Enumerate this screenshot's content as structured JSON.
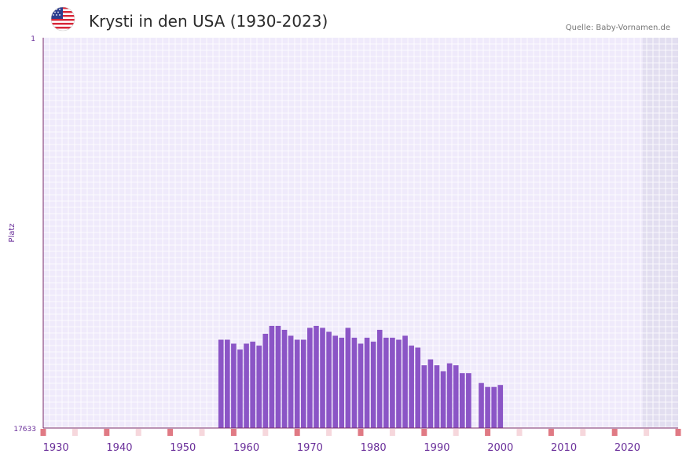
{
  "header": {
    "title": "Krysti in den USA (1930-2023)",
    "source": "Quelle: Baby-Vornamen.de",
    "flag_icon": "us-flag-icon"
  },
  "colors": {
    "bar": "#8b55c6",
    "plot_bg": "#efeafb",
    "grid": "#ffffff",
    "future_band": "#e2def0",
    "axis": "#7a2a6a",
    "tick_label": "#6a2f9a",
    "decade_marker": "#e07a84",
    "half_marker": "#f6d7dc"
  },
  "chart_data": {
    "type": "bar",
    "title": "Krysti in den USA (1930-2023)",
    "xlabel": "",
    "ylabel": "Platz",
    "y_inverted": true,
    "ylim": [
      1,
      17633
    ],
    "y_tick_labels": [
      "1",
      "17633"
    ],
    "xlim": [
      1928,
      2028
    ],
    "x_tick_values": [
      1930,
      1940,
      1950,
      1960,
      1970,
      1980,
      1990,
      2000,
      2010,
      2020
    ],
    "x_tick_labels": [
      "1930",
      "1940",
      "1950",
      "1960",
      "1970",
      "1980",
      "1990",
      "2000",
      "2010",
      "2020"
    ],
    "future_from_year": 2023,
    "decade_marker_years": [
      1928,
      1938,
      1948,
      1958,
      1968,
      1978,
      1988,
      1998,
      2008,
      2018,
      2028
    ],
    "half_decade_marker_years": [
      1933,
      1943,
      1953,
      1963,
      1973,
      1983,
      1993,
      2003,
      2013,
      2023
    ],
    "series": [
      {
        "name": "Krysti",
        "years": [
          1956,
          1957,
          1958,
          1959,
          1960,
          1961,
          1962,
          1963,
          1964,
          1965,
          1966,
          1967,
          1968,
          1969,
          1970,
          1971,
          1972,
          1973,
          1974,
          1975,
          1976,
          1977,
          1978,
          1979,
          1980,
          1981,
          1982,
          1983,
          1984,
          1985,
          1986,
          1987,
          1988,
          1989,
          1990,
          1991,
          1992,
          1993,
          1994,
          1995,
          1997,
          1998,
          1999,
          2000
        ],
        "ranks": [
          13642,
          13642,
          13820,
          14087,
          13820,
          13731,
          13909,
          13375,
          13019,
          13019,
          13197,
          13464,
          13642,
          13642,
          13108,
          13019,
          13108,
          13286,
          13464,
          13553,
          13108,
          13553,
          13820,
          13553,
          13731,
          13197,
          13553,
          13553,
          13642,
          13464,
          13909,
          13998,
          14799,
          14532,
          14799,
          15066,
          14710,
          14799,
          15155,
          15155,
          15600,
          15778,
          15778,
          15689
        ]
      }
    ]
  }
}
